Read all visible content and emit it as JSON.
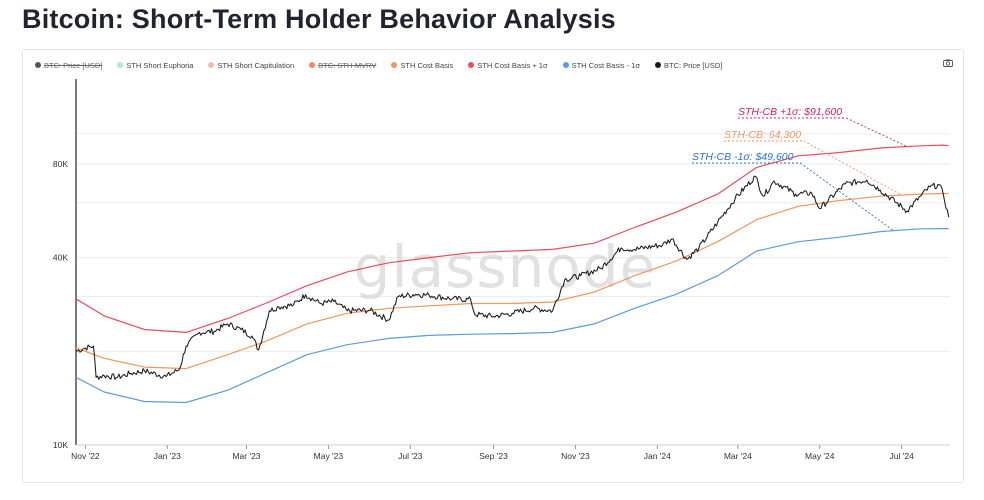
{
  "page": {
    "title": "Bitcoin: Short-Term Holder Behavior Analysis",
    "watermark": "glassnode"
  },
  "legend": [
    {
      "label": "BTC: Price [USD]",
      "color": "#555555",
      "active": false
    },
    {
      "label": "STH Short Euphoria",
      "color": "#b9e4cf",
      "active": true
    },
    {
      "label": "STH Short Capitulation",
      "color": "#f7b8b0",
      "active": true
    },
    {
      "label": "BTC: STH-MVRV",
      "color": "#f08a5d",
      "active": false
    },
    {
      "label": "STH Cost Basis",
      "color": "#f2955c",
      "active": true
    },
    {
      "label": "STH Cost Basis + 1σ",
      "color": "#ee4b5c",
      "active": true
    },
    {
      "label": "STH Cost Basis - 1σ",
      "color": "#5a9be6",
      "active": true
    },
    {
      "label": "BTC: Price [USD]",
      "color": "#1a1a1a",
      "active": true
    }
  ],
  "icons": {
    "camera": "camera-icon"
  },
  "chart_data": {
    "type": "line",
    "yscale": "log",
    "ylim": [
      10000,
      150000
    ],
    "x_range": [
      "2022-10-25",
      "2024-08-06"
    ],
    "x_ticks": [
      {
        "label": "Nov '22",
        "date": "2022-11-01"
      },
      {
        "label": "Jan '23",
        "date": "2023-01-01"
      },
      {
        "label": "Mar '23",
        "date": "2023-03-01"
      },
      {
        "label": "May '23",
        "date": "2023-05-01"
      },
      {
        "label": "Jul '23",
        "date": "2023-07-01"
      },
      {
        "label": "Sep '23",
        "date": "2023-09-01"
      },
      {
        "label": "Nov '23",
        "date": "2023-11-01"
      },
      {
        "label": "Jan '24",
        "date": "2024-01-01"
      },
      {
        "label": "Mar '24",
        "date": "2024-03-01"
      },
      {
        "label": "May '24",
        "date": "2024-05-01"
      },
      {
        "label": "Jul '24",
        "date": "2024-07-01"
      }
    ],
    "y_ticks": [
      {
        "label": "10K",
        "value": 10000
      },
      {
        "label": "40K",
        "value": 40000
      },
      {
        "label": "80K",
        "value": 80000
      }
    ],
    "gridlines": [
      20000,
      30000,
      40000,
      60000,
      80000,
      100000
    ],
    "series": [
      {
        "name": "STH Cost Basis + 1σ",
        "color": "#ee4b5c",
        "points": [
          [
            "2022-10-25",
            29500
          ],
          [
            "2022-11-15",
            26000
          ],
          [
            "2022-12-15",
            23500
          ],
          [
            "2023-01-15",
            23000
          ],
          [
            "2023-02-15",
            25500
          ],
          [
            "2023-03-15",
            28500
          ],
          [
            "2023-04-15",
            32500
          ],
          [
            "2023-05-15",
            36000
          ],
          [
            "2023-06-15",
            38500
          ],
          [
            "2023-07-15",
            40000
          ],
          [
            "2023-08-15",
            41500
          ],
          [
            "2023-09-15",
            42000
          ],
          [
            "2023-10-15",
            42500
          ],
          [
            "2023-11-15",
            44500
          ],
          [
            "2023-12-15",
            50000
          ],
          [
            "2024-01-15",
            56000
          ],
          [
            "2024-02-15",
            64000
          ],
          [
            "2024-03-15",
            78000
          ],
          [
            "2024-04-15",
            85000
          ],
          [
            "2024-05-15",
            87000
          ],
          [
            "2024-06-15",
            90000
          ],
          [
            "2024-07-15",
            91500
          ],
          [
            "2024-08-01",
            92000
          ],
          [
            "2024-08-05",
            91600
          ]
        ]
      },
      {
        "name": "STH Cost Basis",
        "color": "#f2955c",
        "points": [
          [
            "2022-10-25",
            20500
          ],
          [
            "2022-11-15",
            19000
          ],
          [
            "2022-12-15",
            17800
          ],
          [
            "2023-01-15",
            17600
          ],
          [
            "2023-02-15",
            19500
          ],
          [
            "2023-03-15",
            21500
          ],
          [
            "2023-04-15",
            24500
          ],
          [
            "2023-05-15",
            26500
          ],
          [
            "2023-06-15",
            27500
          ],
          [
            "2023-07-15",
            28000
          ],
          [
            "2023-08-15",
            28500
          ],
          [
            "2023-09-15",
            28500
          ],
          [
            "2023-10-15",
            28800
          ],
          [
            "2023-11-15",
            31000
          ],
          [
            "2023-12-15",
            35000
          ],
          [
            "2024-01-15",
            39000
          ],
          [
            "2024-02-15",
            45000
          ],
          [
            "2024-03-15",
            53000
          ],
          [
            "2024-04-15",
            58500
          ],
          [
            "2024-05-15",
            61000
          ],
          [
            "2024-06-15",
            63000
          ],
          [
            "2024-07-15",
            64000
          ],
          [
            "2024-08-01",
            64300
          ],
          [
            "2024-08-05",
            64300
          ]
        ]
      },
      {
        "name": "STH Cost Basis - 1σ",
        "color": "#5a9be6",
        "points": [
          [
            "2022-10-25",
            16500
          ],
          [
            "2022-11-15",
            14800
          ],
          [
            "2022-12-15",
            13800
          ],
          [
            "2023-01-15",
            13700
          ],
          [
            "2023-02-15",
            15000
          ],
          [
            "2023-03-15",
            17000
          ],
          [
            "2023-04-15",
            19500
          ],
          [
            "2023-05-15",
            21000
          ],
          [
            "2023-06-15",
            22000
          ],
          [
            "2023-07-15",
            22500
          ],
          [
            "2023-08-15",
            22700
          ],
          [
            "2023-09-15",
            22800
          ],
          [
            "2023-10-15",
            23000
          ],
          [
            "2023-11-15",
            24500
          ],
          [
            "2023-12-15",
            27500
          ],
          [
            "2024-01-15",
            30500
          ],
          [
            "2024-02-15",
            35000
          ],
          [
            "2024-03-15",
            42000
          ],
          [
            "2024-04-15",
            45000
          ],
          [
            "2024-05-15",
            46500
          ],
          [
            "2024-06-15",
            48500
          ],
          [
            "2024-07-15",
            49500
          ],
          [
            "2024-08-01",
            49600
          ],
          [
            "2024-08-05",
            49600
          ]
        ]
      },
      {
        "name": "BTC: Price [USD]",
        "color": "#1a1a1a",
        "points": [
          [
            "2022-10-25",
            20000
          ],
          [
            "2022-11-01",
            20500
          ],
          [
            "2022-11-07",
            20800
          ],
          [
            "2022-11-09",
            16500
          ],
          [
            "2022-11-15",
            16700
          ],
          [
            "2022-11-25",
            16500
          ],
          [
            "2022-12-05",
            17000
          ],
          [
            "2022-12-15",
            17300
          ],
          [
            "2022-12-31",
            16600
          ],
          [
            "2023-01-10",
            17500
          ],
          [
            "2023-01-15",
            20800
          ],
          [
            "2023-01-25",
            23000
          ],
          [
            "2023-02-05",
            23200
          ],
          [
            "2023-02-15",
            24500
          ],
          [
            "2023-02-25",
            23500
          ],
          [
            "2023-03-05",
            22400
          ],
          [
            "2023-03-10",
            20200
          ],
          [
            "2023-03-18",
            27000
          ],
          [
            "2023-03-25",
            27800
          ],
          [
            "2023-04-05",
            28200
          ],
          [
            "2023-04-14",
            30400
          ],
          [
            "2023-04-25",
            28500
          ],
          [
            "2023-05-05",
            28900
          ],
          [
            "2023-05-15",
            27000
          ],
          [
            "2023-06-01",
            27100
          ],
          [
            "2023-06-15",
            25200
          ],
          [
            "2023-06-22",
            30000
          ],
          [
            "2023-07-05",
            30500
          ],
          [
            "2023-07-15",
            30300
          ],
          [
            "2023-08-01",
            29500
          ],
          [
            "2023-08-15",
            29300
          ],
          [
            "2023-08-18",
            26300
          ],
          [
            "2023-09-01",
            25900
          ],
          [
            "2023-09-15",
            26500
          ],
          [
            "2023-10-01",
            27500
          ],
          [
            "2023-10-15",
            27000
          ],
          [
            "2023-10-24",
            34000
          ],
          [
            "2023-11-05",
            35000
          ],
          [
            "2023-11-20",
            37000
          ],
          [
            "2023-12-05",
            43000
          ],
          [
            "2023-12-15",
            42500
          ],
          [
            "2024-01-05",
            44000
          ],
          [
            "2024-01-12",
            46000
          ],
          [
            "2024-01-23",
            39500
          ],
          [
            "2024-02-01",
            43000
          ],
          [
            "2024-02-15",
            52000
          ],
          [
            "2024-02-28",
            62000
          ],
          [
            "2024-03-14",
            73000
          ],
          [
            "2024-03-20",
            63000
          ],
          [
            "2024-03-28",
            70500
          ],
          [
            "2024-04-13",
            64000
          ],
          [
            "2024-04-25",
            64500
          ],
          [
            "2024-05-01",
            57500
          ],
          [
            "2024-05-20",
            69000
          ],
          [
            "2024-06-05",
            71000
          ],
          [
            "2024-06-15",
            66000
          ],
          [
            "2024-07-05",
            56500
          ],
          [
            "2024-07-15",
            63000
          ],
          [
            "2024-07-22",
            67500
          ],
          [
            "2024-07-29",
            68500
          ],
          [
            "2024-08-01",
            64000
          ],
          [
            "2024-08-05",
            54000
          ]
        ]
      }
    ],
    "annotations": [
      {
        "text": "STH-CB +1σ: $91,600",
        "color": "#d91e63",
        "series": "STH Cost Basis + 1σ",
        "point_date": "2024-07-05"
      },
      {
        "text": "STH-CB: 64,300",
        "color": "#f2955c",
        "series": "STH Cost Basis",
        "point_date": "2024-07-01"
      },
      {
        "text": "STH-CB -1σ: $49,600",
        "color": "#2f6fd6",
        "series": "STH Cost Basis - 1σ",
        "point_date": "2024-06-25"
      }
    ]
  }
}
